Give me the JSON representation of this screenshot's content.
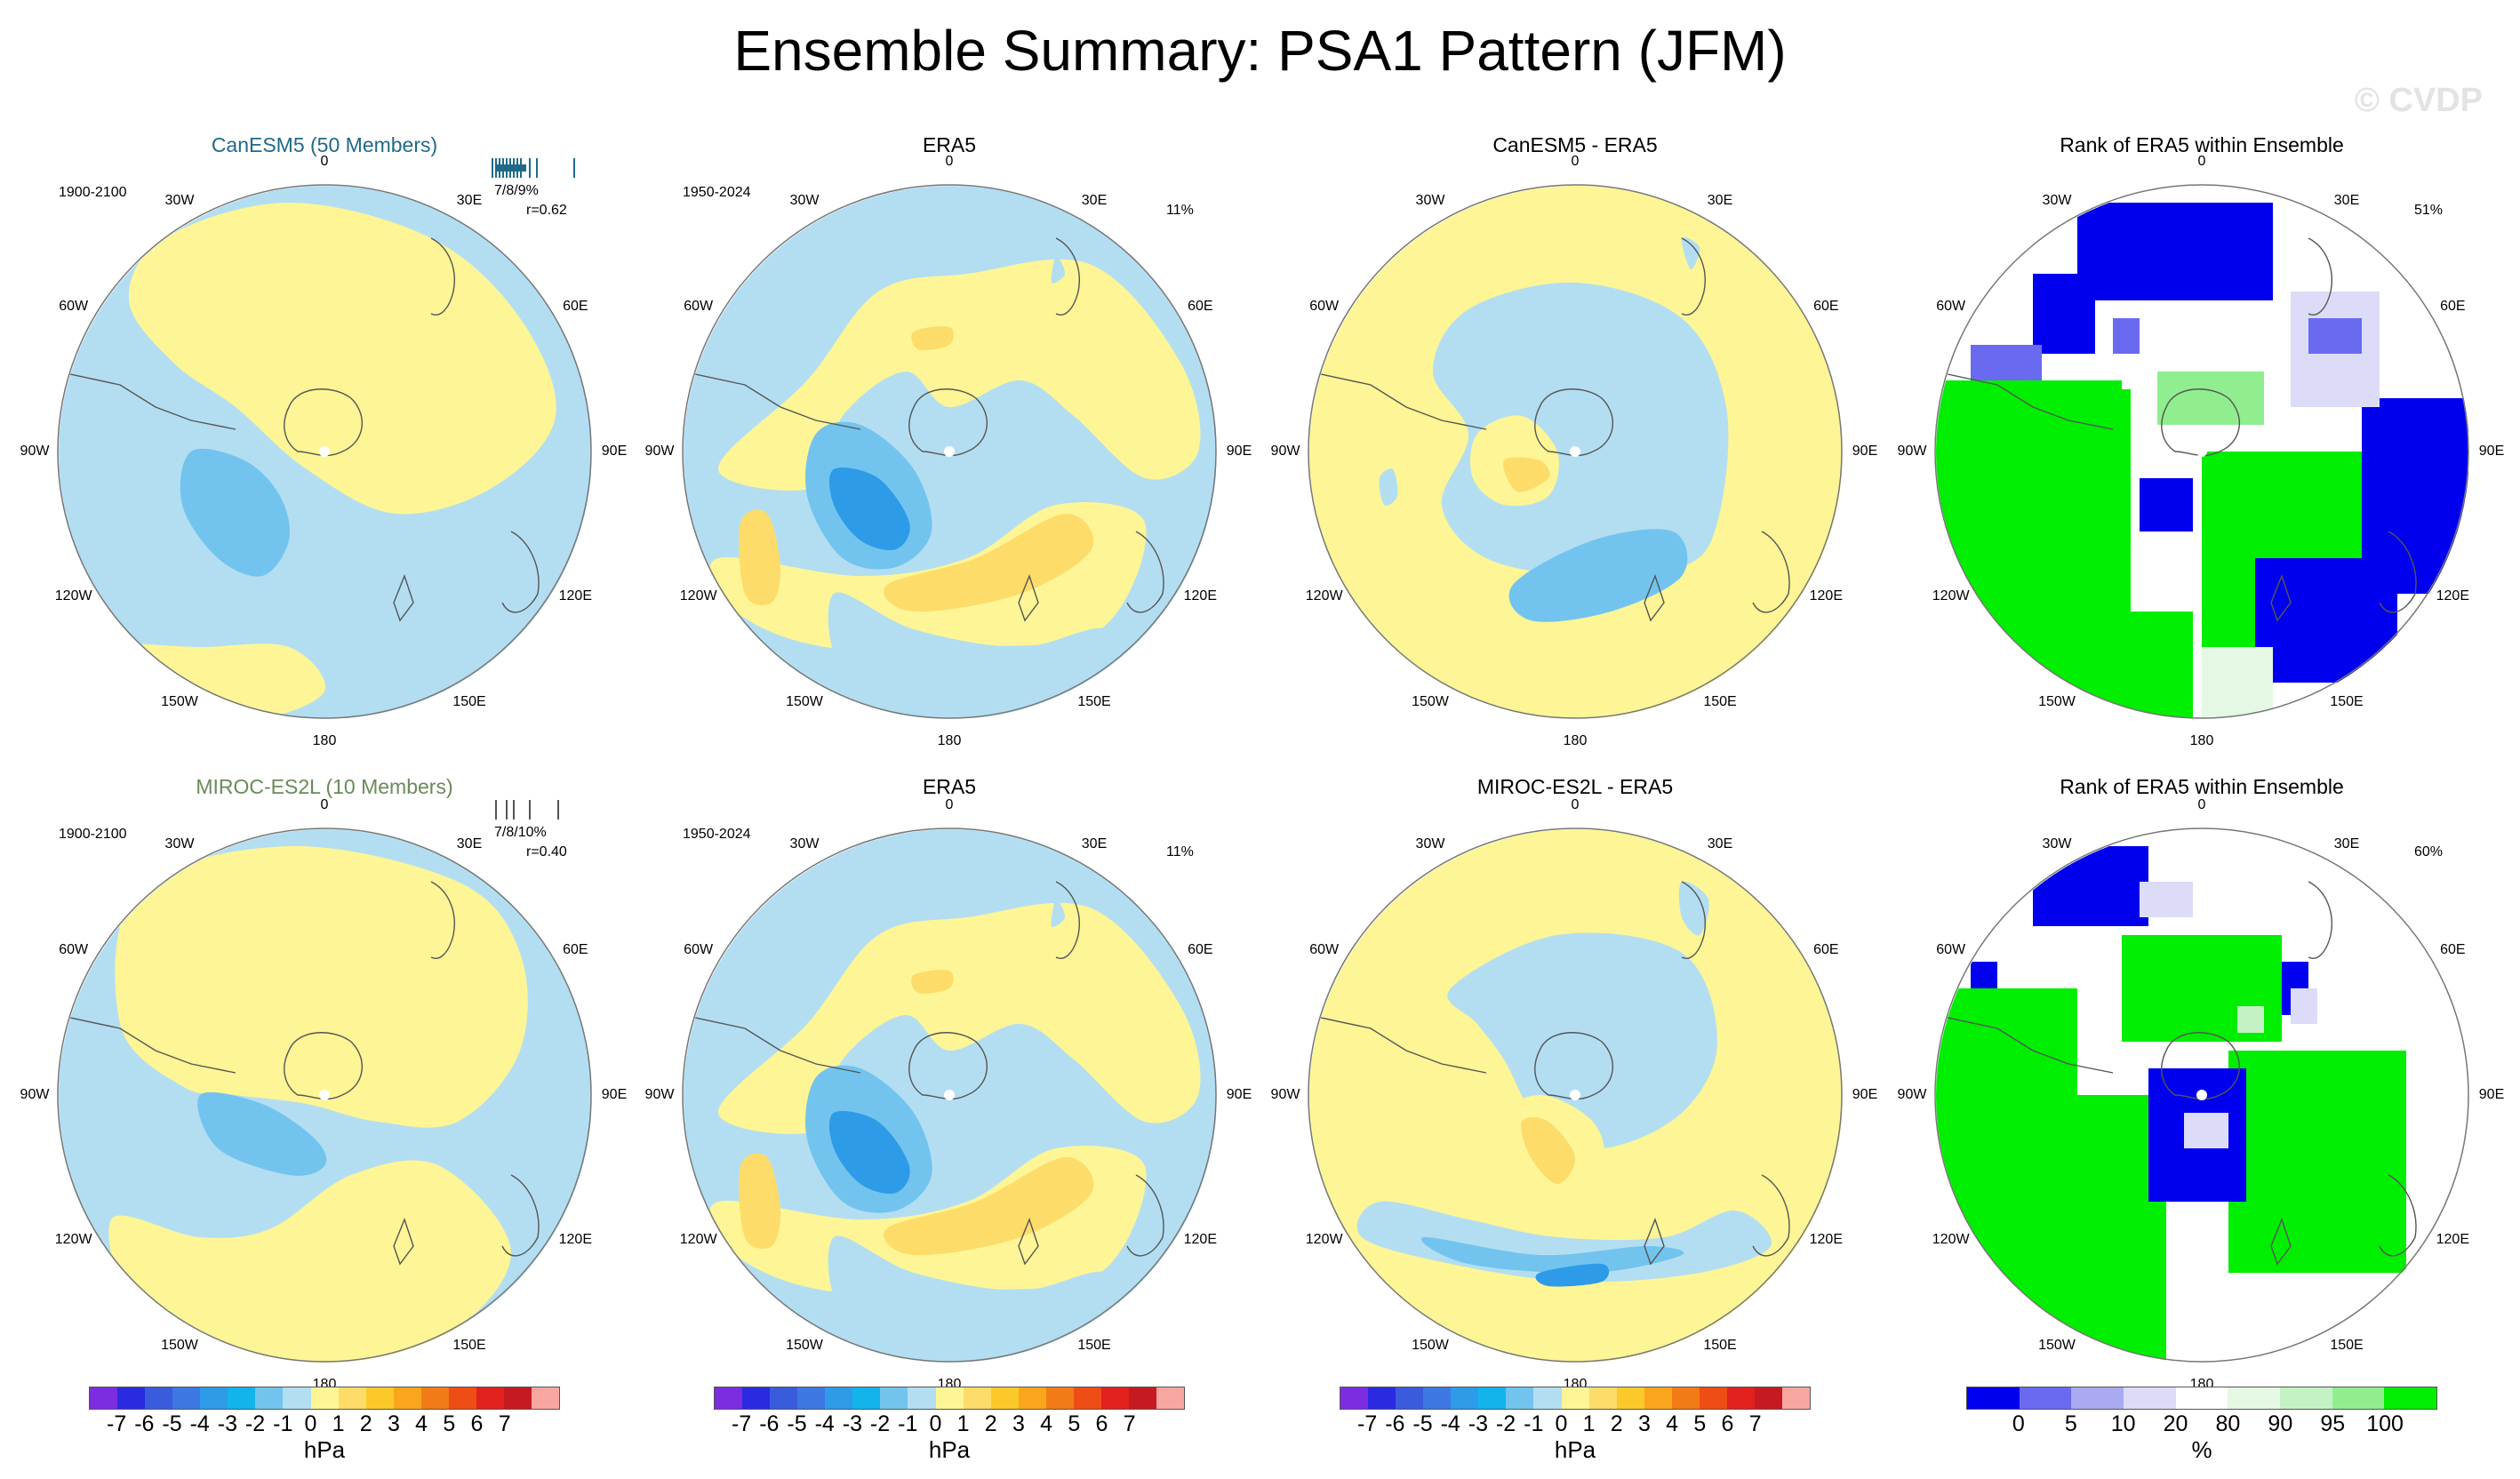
{
  "title": "Ensemble Summary: PSA1 Pattern (JFM)",
  "watermark": "© CVDP",
  "colors": {
    "neg7": "#7b2ddf",
    "neg6": "#2a2ae0",
    "neg5": "#3a5bdc",
    "neg4": "#3d78e2",
    "neg3": "#2e9be8",
    "neg2": "#13b4ec",
    "neg1": "#72c4ee",
    "neg0": "#b3def2",
    "pos0": "#fdf596",
    "pos1": "#fddc6a",
    "pos2": "#fbc92a",
    "pos3": "#f9a61c",
    "pos4": "#f27b18",
    "pos5": "#ee4d16",
    "pos6": "#e2211c",
    "pos7": "#c51a21",
    "pos8": "#f7a7a0",
    "rank_colors": [
      "#0000ee",
      "#6a6af0",
      "#aaaaf2",
      "#dcdcf8",
      "#ffffff",
      "#e4f8e4",
      "#c4f2c4",
      "#90ee90",
      "#00ee00"
    ],
    "can_title_color": "#1f6a8a",
    "miroc_title_color": "#6a8a5a"
  },
  "rows": [
    {
      "model": {
        "title": "CanESM5 (50 Members)",
        "period": "1900-2100",
        "stats": "7/8/9%",
        "corr": "r=0.62"
      },
      "obs": {
        "title": "ERA5",
        "period": "1950-2024",
        "pct": "11%"
      },
      "diff": {
        "title": "CanESM5 - ERA5"
      },
      "rank": {
        "title": "Rank of ERA5 within Ensemble",
        "pct": "51%"
      }
    },
    {
      "model": {
        "title": "MIROC-ES2L (10 Members)",
        "period": "1900-2100",
        "stats": "7/8/10%",
        "corr": "r=0.40"
      },
      "obs": {
        "title": "ERA5",
        "period": "1950-2024",
        "pct": "11%"
      },
      "diff": {
        "title": "MIROC-ES2L - ERA5"
      },
      "rank": {
        "title": "Rank of ERA5 within Ensemble",
        "pct": "60%"
      }
    }
  ],
  "lon_labels": [
    "0",
    "30E",
    "60E",
    "90E",
    "120E",
    "150E",
    "180",
    "150W",
    "120W",
    "90W",
    "60W",
    "30W"
  ],
  "colorbar_hpa": {
    "ticks": [
      "-7",
      "-6",
      "-5",
      "-4",
      "-3",
      "-2",
      "-1",
      "0",
      "1",
      "2",
      "3",
      "4",
      "5",
      "6",
      "7"
    ],
    "unit": "hPa"
  },
  "colorbar_rank": {
    "ticks": [
      "0",
      "5",
      "10",
      "20",
      "80",
      "90",
      "95",
      "100"
    ],
    "unit": "%"
  }
}
